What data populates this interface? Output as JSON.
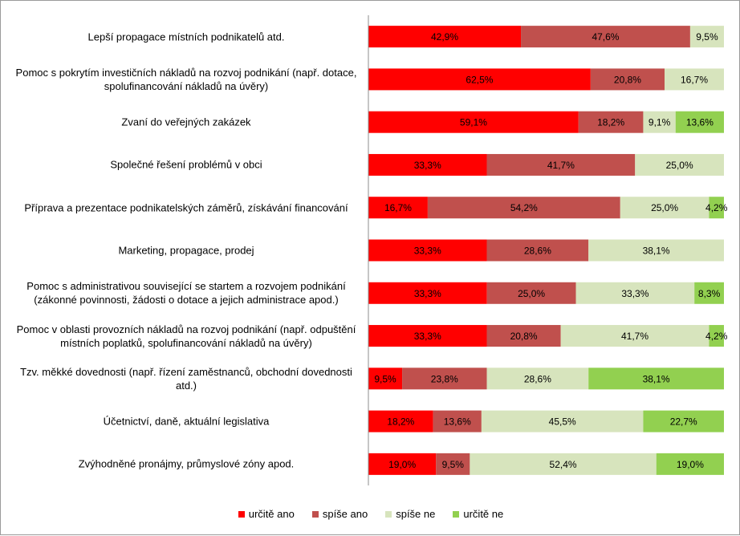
{
  "chart_data": {
    "type": "bar",
    "orientation": "horizontal",
    "stacked": "percent",
    "categories": [
      "Lepší propagace místních podnikatelů atd.",
      "Pomoc s pokrytím investičních nákladů na rozvoj podnikání (např. dotace, spolufinancování nákladů na úvěry)",
      "Zvaní do veřejných zakázek",
      "Společné řešení problémů v obci",
      "Příprava a prezentace podnikatelských záměrů, získávání financování",
      "Marketing, propagace, prodej",
      "Pomoc s administrativou související se startem a rozvojem podnikání (zákonné povinnosti, žádosti o dotace a jejich administrace apod.)",
      "Pomoc v oblasti provozních nákladů na rozvoj podnikání (např. odpuštění místních poplatků, spolufinancování nákladů na úvěry)",
      "Tzv. měkké dovednosti (např. řízení zaměstnanců, obchodní dovednosti atd.)",
      "Účetnictví, daně, aktuální legislativa",
      "Zvýhodněné pronájmy, průmyslové zóny apod."
    ],
    "category_lines": [
      [
        "Lepší propagace místních podnikatelů atd."
      ],
      [
        "Pomoc s pokrytím investičních nákladů na rozvoj podnikání (např. dotace,",
        "spolufinancování nákladů na úvěry)"
      ],
      [
        "Zvaní do veřejných zakázek"
      ],
      [
        "Společné řešení problémů v obci"
      ],
      [
        "Příprava a prezentace podnikatelských záměrů, získávání financování"
      ],
      [
        "Marketing, propagace, prodej"
      ],
      [
        "Pomoc s administrativou související se startem a rozvojem podnikání",
        "(zákonné povinnosti, žádosti o dotace a jejich administrace apod.)"
      ],
      [
        "Pomoc v oblasti provozních nákladů na rozvoj podnikání (např. odpuštění",
        "místních poplatků, spolufinancování nákladů na úvěry)"
      ],
      [
        "Tzv. měkké dovednosti (např. řízení zaměstnanců, obchodní dovednosti",
        "atd.)"
      ],
      [
        "Účetnictví, daně, aktuální legislativa"
      ],
      [
        "Zvýhodněné pronájmy, průmyslové zóny apod."
      ]
    ],
    "series": [
      {
        "name": "určitě ano",
        "color": "#ff0000",
        "values": [
          42.9,
          62.5,
          59.1,
          33.3,
          16.7,
          33.3,
          33.3,
          33.3,
          9.5,
          18.2,
          19.0
        ],
        "labels": [
          "42,9%",
          "62,5%",
          "59,1%",
          "33,3%",
          "16,7%",
          "33,3%",
          "33,3%",
          "33,3%",
          "9,5%",
          "18,2%",
          "19,0%"
        ]
      },
      {
        "name": "spíše ano",
        "color": "#c0504d",
        "values": [
          47.6,
          20.8,
          18.2,
          41.7,
          54.2,
          28.6,
          25.0,
          20.8,
          23.8,
          13.6,
          9.5
        ],
        "labels": [
          "47,6%",
          "20,8%",
          "18,2%",
          "41,7%",
          "54,2%",
          "28,6%",
          "25,0%",
          "20,8%",
          "23,8%",
          "13,6%",
          "9,5%"
        ]
      },
      {
        "name": "spíše ne",
        "color": "#d7e4bd",
        "values": [
          9.5,
          16.7,
          9.1,
          25.0,
          25.0,
          38.1,
          33.3,
          41.7,
          28.6,
          45.5,
          52.4
        ],
        "labels": [
          "9,5%",
          "16,7%",
          "9,1%",
          "25,0%",
          "25,0%",
          "38,1%",
          "33,3%",
          "41,7%",
          "28,6%",
          "45,5%",
          "52,4%"
        ]
      },
      {
        "name": "určitě ne",
        "color": "#92d050",
        "values": [
          0,
          0,
          13.6,
          0,
          4.2,
          0,
          8.3,
          4.2,
          38.1,
          22.7,
          19.0
        ],
        "labels": [
          "",
          "",
          "13,6%",
          "",
          "4,2%",
          "",
          "8,3%",
          "4,2%",
          "38,1%",
          "22,7%",
          "19,0%"
        ]
      }
    ],
    "xlim": [
      0,
      100
    ],
    "grid": false,
    "legend_position": "bottom"
  }
}
